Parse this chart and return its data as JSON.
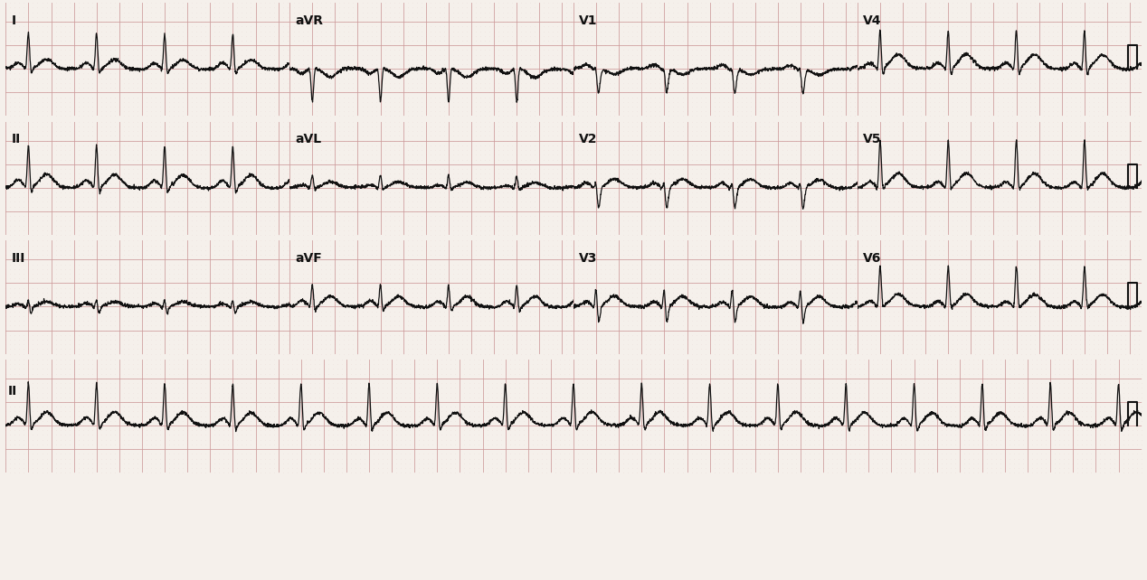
{
  "bg_color": "#f5f0eb",
  "grid_dot_color": "#d4aaaa",
  "grid_major_color": "#cc9999",
  "ecg_color": "#111111",
  "text_color": "#111111",
  "border_color": "#333333",
  "fig_width": 12.68,
  "fig_height": 6.42,
  "dpi": 100,
  "heart_rate": 100,
  "fs": 500,
  "dur_short": 2.5,
  "dur_long": 10.0,
  "leads_row1": [
    "I",
    "aVR",
    "V1",
    "V4"
  ],
  "leads_row2": [
    "II",
    "aVL",
    "V2",
    "V5"
  ],
  "leads_row3": [
    "III",
    "aVF",
    "V3",
    "V6"
  ],
  "leads_row4": [
    "II"
  ],
  "label_fontsize": 10,
  "ecg_linewidth": 0.9,
  "row_border_lw": 0.8
}
